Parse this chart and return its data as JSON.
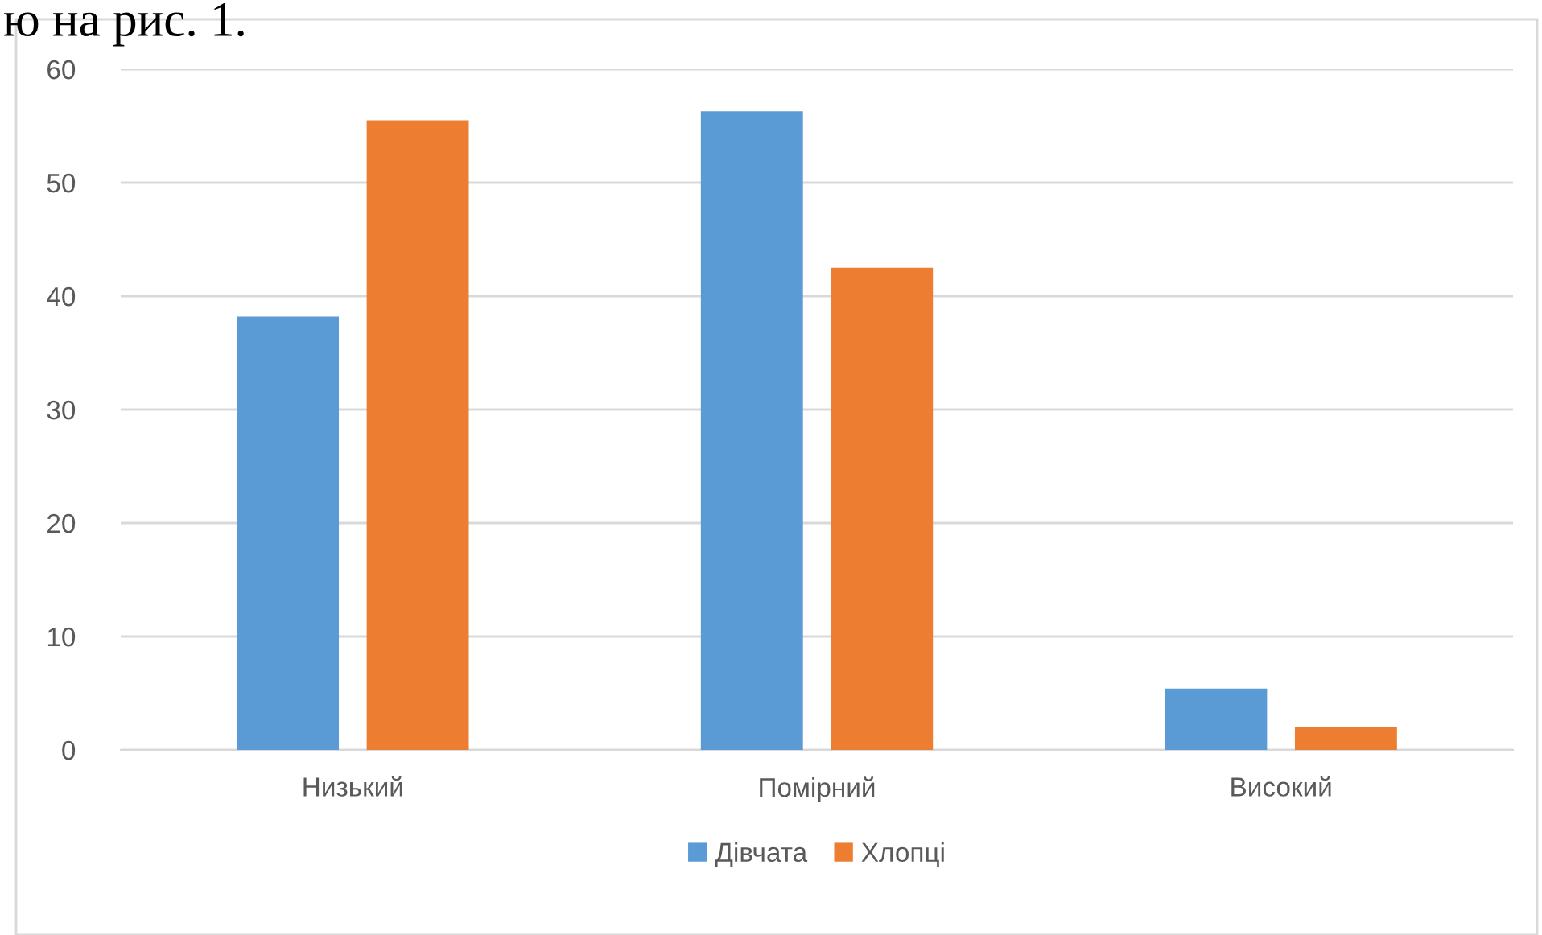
{
  "chart_data": {
    "type": "bar",
    "categories": [
      "Низький",
      "Помірний",
      "Високий"
    ],
    "series": [
      {
        "name": "Дівчата",
        "color": "#5b9bd5",
        "values": [
          38.2,
          56.3,
          5.4
        ]
      },
      {
        "name": "Хлопці",
        "color": "#ed7d31",
        "values": [
          55.5,
          42.5,
          2.0
        ]
      }
    ],
    "ylim": [
      0,
      60
    ],
    "yticks": [
      0,
      10,
      20,
      30,
      40,
      50,
      60
    ],
    "grid": "y",
    "legend": "bottom",
    "annotations": [
      "ю на рис. 1."
    ]
  }
}
